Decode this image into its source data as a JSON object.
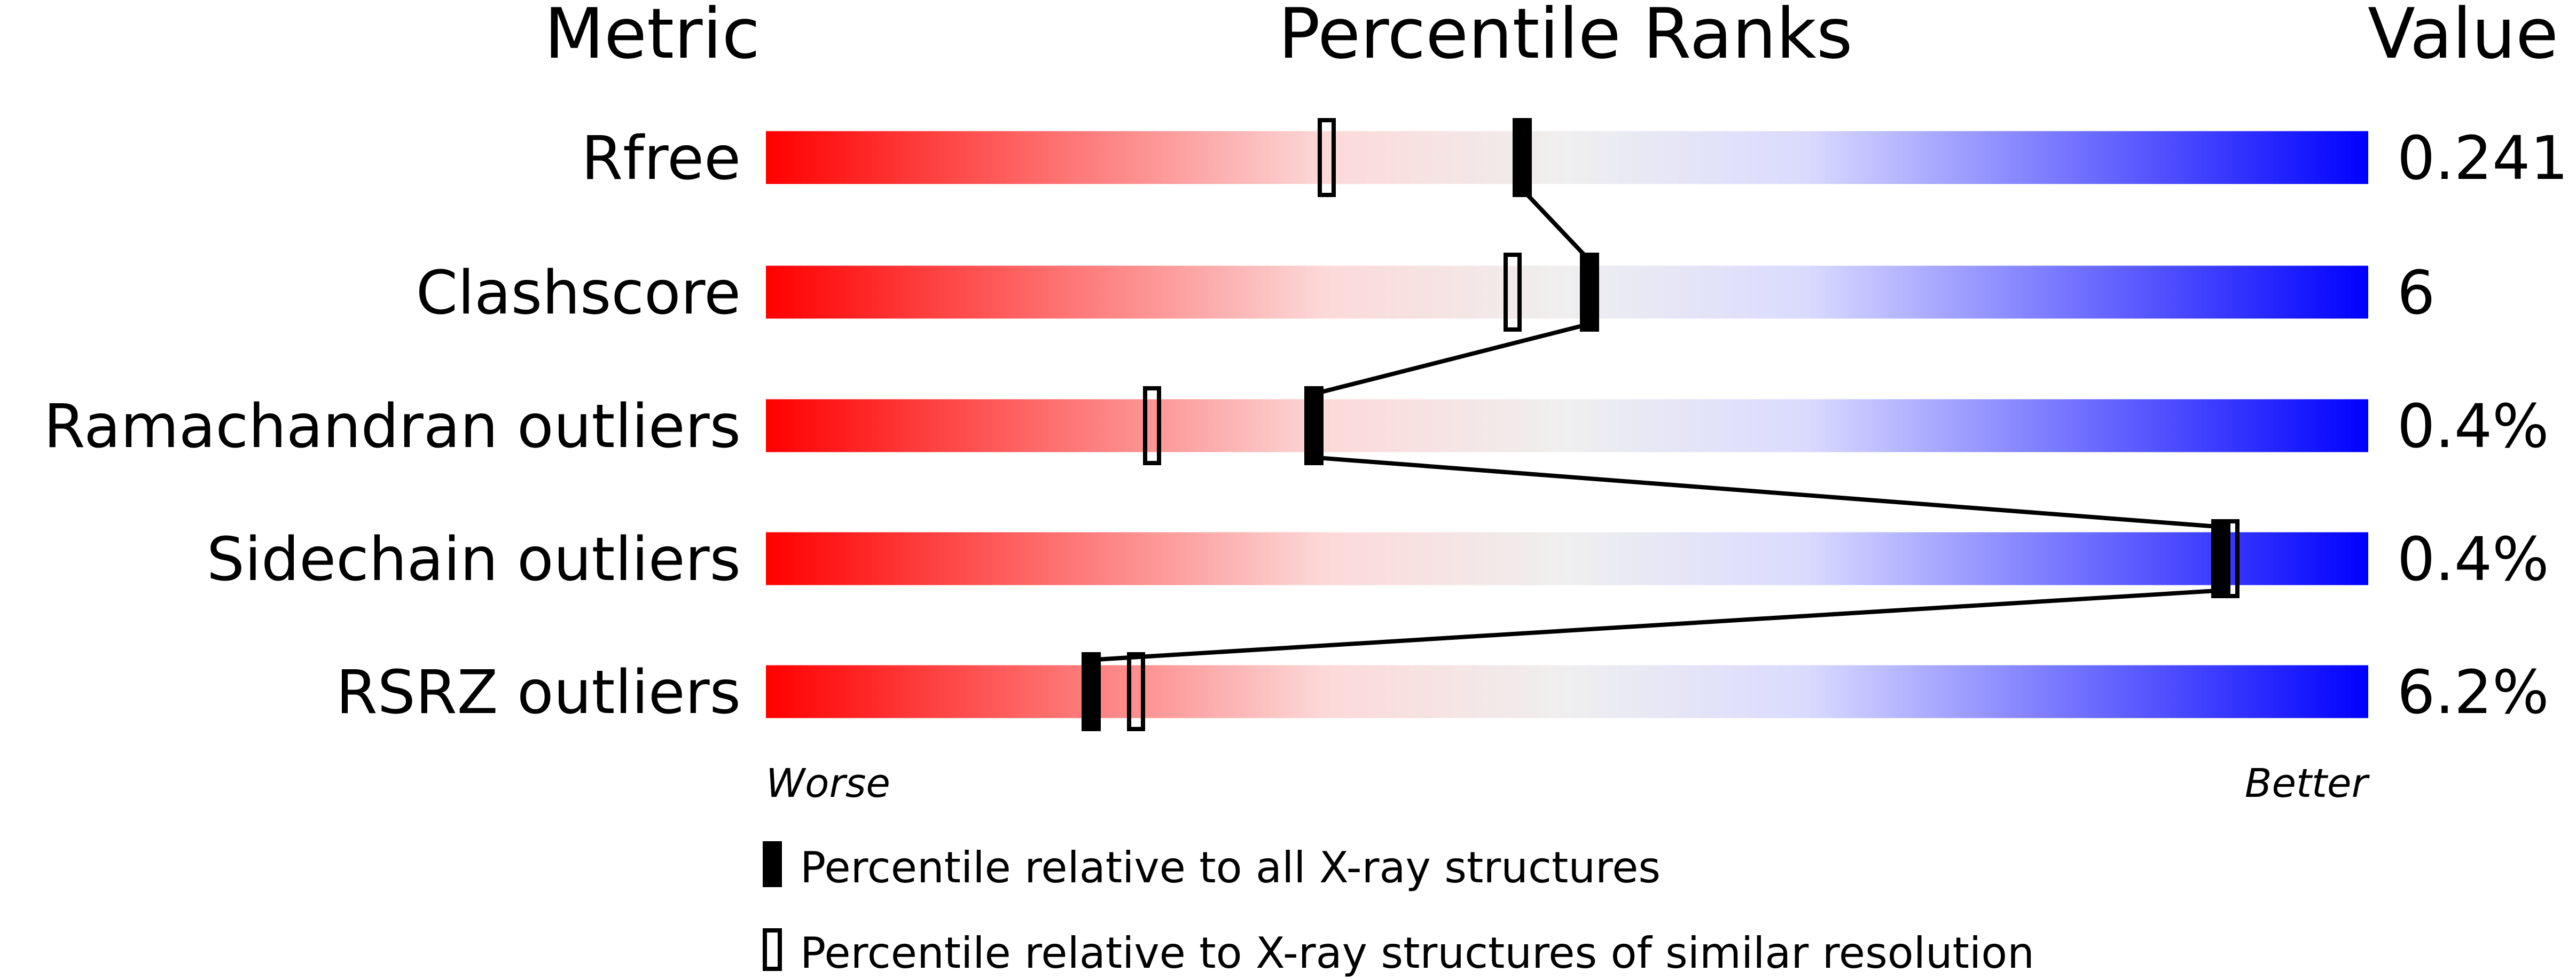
{
  "chart_data": {
    "type": "percentile-slider",
    "headers": {
      "metric": "Metric",
      "ranks": "Percentile Ranks",
      "value": "Value"
    },
    "xlim": [
      0,
      100
    ],
    "axis_ends": {
      "left": "Worse",
      "right": "Better"
    },
    "gradient_colors": [
      "#ff0000",
      "#fcd9d9",
      "#efefef",
      "#dadaff",
      "#0000ff"
    ],
    "rows": [
      {
        "metric": "Rfree",
        "value": "0.241",
        "percentile_all": 47.2,
        "percentile_similar": 35.0
      },
      {
        "metric": "Clashscore",
        "value": "6",
        "percentile_all": 51.4,
        "percentile_similar": 46.6
      },
      {
        "metric": "Ramachandran outliers",
        "value": "0.4%",
        "percentile_all": 34.2,
        "percentile_similar": 24.1
      },
      {
        "metric": "Sidechain outliers",
        "value": "0.4%",
        "percentile_all": 90.8,
        "percentile_similar": 91.4
      },
      {
        "metric": "RSRZ outliers",
        "value": "6.2%",
        "percentile_all": 20.3,
        "percentile_similar": 23.1
      }
    ],
    "legend": {
      "filled": "Percentile relative to all X-ray structures",
      "open": "Percentile relative to X-ray structures of similar resolution"
    }
  }
}
